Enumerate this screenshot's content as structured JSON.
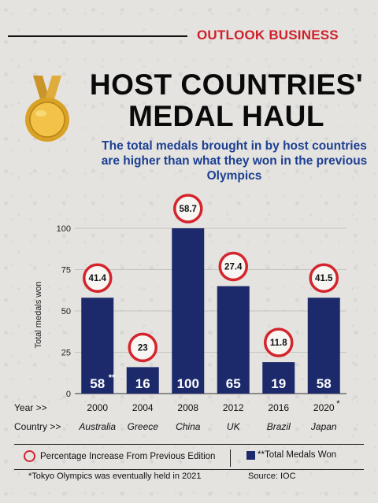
{
  "brand": "OUTLOOK BUSINESS",
  "title_line1": "HOST COUNTRIES'",
  "title_line2": "MEDAL HAUL",
  "subtitle": "The total medals brought in by host countries are higher than what they won in the previous Olympics",
  "chart_data": {
    "type": "bar",
    "ylabel": "Total medals won",
    "ylim": [
      0,
      100
    ],
    "yticks": [
      "0",
      "25",
      "50",
      "75",
      "100"
    ],
    "row_labels": [
      "Year >>",
      "Country >>"
    ],
    "bars": [
      {
        "year": "2000",
        "year_mark": "",
        "country": "Australia",
        "total": 58,
        "label_mark": "**",
        "pct_increase": "41.4"
      },
      {
        "year": "2004",
        "year_mark": "",
        "country": "Greece",
        "total": 16,
        "label_mark": "",
        "pct_increase": "23"
      },
      {
        "year": "2008",
        "year_mark": "",
        "country": "China",
        "total": 100,
        "label_mark": "",
        "pct_increase": "58.7"
      },
      {
        "year": "2012",
        "year_mark": "",
        "country": "UK",
        "total": 65,
        "label_mark": "",
        "pct_increase": "27.4"
      },
      {
        "year": "2016",
        "year_mark": "",
        "country": "Brazil",
        "total": 19,
        "label_mark": "",
        "pct_increase": "11.8"
      },
      {
        "year": "2020",
        "year_mark": "*",
        "country": "Japan",
        "total": 58,
        "label_mark": "",
        "pct_increase": "41.5"
      }
    ],
    "colors": {
      "bar": "#1c2a6b",
      "ring": "#d4242c"
    }
  },
  "legend": {
    "circle_label": "Percentage Increase From Previous Edition",
    "bar_label": "**Total Medals Won"
  },
  "footnote": "*Tokyo Olympics was eventually held in 2021",
  "source": "Source: IOC"
}
